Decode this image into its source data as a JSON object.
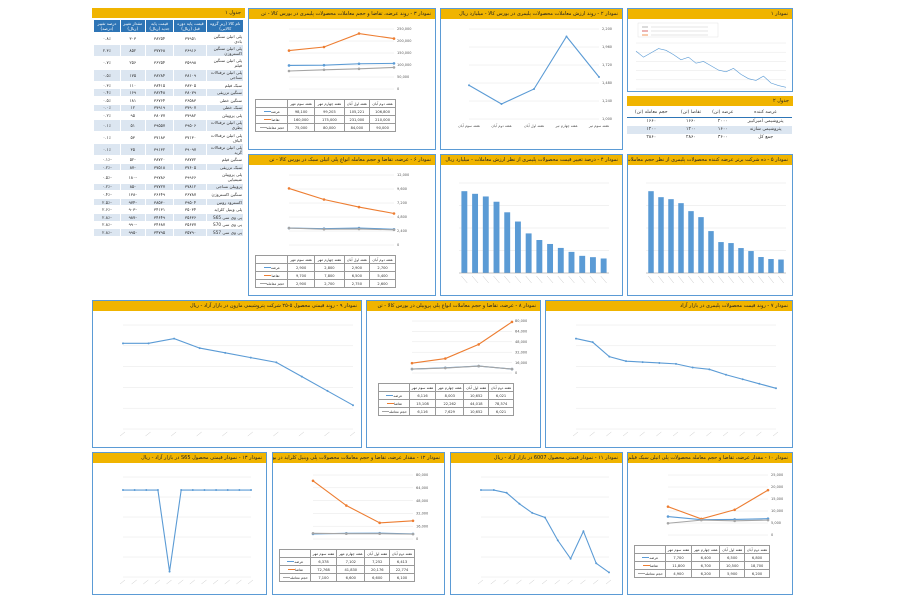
{
  "colors": {
    "blue": "#5b9bd5",
    "orange": "#ed7d31",
    "gray": "#a5a5a5",
    "header": "#f0b400",
    "tableHead": "#2e75b6"
  },
  "table1": {
    "title": "جدول ۱",
    "headers": [
      "نام کالا (زیر گروه کالایی)",
      "قیمت پایه دوره قبل (ریال)",
      "قیمت پایه جدید (ریال)",
      "مقدار تغییر (ریال)",
      "درصد تغییر (درصد)"
    ],
    "rows": [
      [
        "پلی اتیلن سنگین بادی",
        "۳۷۹۵۱",
        "۳۸۲۵۴",
        "۳۰۳",
        "۰.۸٪"
      ],
      [
        "پلی اتیلن سنگین اکستروژن",
        "۳۶۹۱۶",
        "۳۷۷۶۸",
        "۸۵۲",
        "۲.۳٪"
      ],
      [
        "پلی اتیلن سنگین فیلم",
        "۳۵۹۹۸",
        "۳۶۲۵۴",
        "۲۵۶",
        "۰.۷٪"
      ],
      [
        "پلی اتیلن ترفتالات نساجی",
        "۳۸۱۰۹",
        "۳۸۲۸۴",
        "۱۷۵",
        "۰.۵٪"
      ],
      [
        "سبک فیلم",
        "۳۸۳۰۵",
        "۳۸۴۱۵",
        "۱۱۰",
        "۰.۳٪"
      ],
      [
        "سنگین تزریقی",
        "۳۸۰۷۹",
        "۳۸۲۴۸",
        "۱۶۹",
        "۰.۴٪"
      ],
      [
        "سنگین خطی",
        "۳۶۵۸۳",
        "۳۶۷۶۴",
        "۱۸۱",
        "۰.۵٪"
      ],
      [
        "سبک خطی",
        "۳۷۹۰۷",
        "۳۷۹۱۹",
        "۱۲",
        "۰.۰٪"
      ],
      [
        "پلی پروپیلن",
        "۳۷۹۸۲",
        "۳۸۰۷۷",
        "۹۵",
        "۰.۲٪"
      ],
      [
        "پلی اتیلن ترفتالات بطری",
        "۳۹۵۰۶",
        "۳۹۵۵۷",
        "۵۱",
        "۰.۱٪"
      ],
      [
        "پلی اتیلن ترفتالات الیاف",
        "۳۷۱۳۰",
        "۳۷۱۸۳",
        "۵۳",
        "۰.۱٪"
      ],
      [
        "پلی اتیلن ترفتالات گرید",
        "۳۹۰۹۷",
        "۳۹۱۳۲",
        "۳۵",
        "۰.۱٪"
      ],
      [
        "سنگین فیلم",
        "۳۸۷۷۲",
        "۳۸۷۲۰",
        "-۵۲",
        "-۰.۱٪"
      ],
      [
        "سبک تزریقی",
        "۳۷۶۰۵",
        "۳۷۵۱۸",
        "-۸۷",
        "-۰.۲٪"
      ],
      [
        "پلی پروپیلن شیمیایی",
        "۳۹۹۶۶",
        "۳۹۷۸۶",
        "-۱۸۰",
        "-۰.۵٪"
      ],
      [
        "پروپیلن نساجی",
        "۳۷۸۱۲",
        "۳۷۷۲۷",
        "-۸۵",
        "-۰.۲٪"
      ],
      [
        "سنگین اکستروژن",
        "۳۶۷۸۷",
        "۳۶۶۴۹",
        "-۱۳۸",
        "-۰.۴٪"
      ],
      [
        "اکسترود روتین",
        "۳۹۵۰۴",
        "۳۸۵۳۰",
        "-۹۷۴",
        "-۲.۵٪"
      ],
      [
        "پلی وینیل کلراید",
        "۳۵۰۳۴",
        "۳۴۱۳۱",
        "-۹۰۳",
        "-۲.۶٪"
      ],
      [
        "پی وی سی S65",
        "۳۵۶۳۶",
        "۳۴۶۴۹",
        "-۹۸۷",
        "-۲.۸٪"
      ],
      [
        "پی وی سی S70",
        "۳۵۶۷۷",
        "۳۴۶۸۷",
        "-۹۹۰",
        "-۲.۸٪"
      ],
      [
        "پی وی سی S57",
        "۳۵۷۹۰",
        "۳۴۷۹۵",
        "-۹۹۵",
        "-۲.۸٪"
      ]
    ]
  },
  "table2": {
    "title": "جدول ۲",
    "headers": [
      "عرضه کننده",
      "عرضه (تن)",
      "تقاضا (تن)",
      "حجم معامله (تن)"
    ],
    "rows": [
      [
        "پتروشیمی امیرکبیر",
        "۲۰۰۰",
        "۱۶۶۰",
        "۱۶۶۰"
      ],
      [
        "پتروشیمی شازند",
        "۱۶۰۰",
        "۱۲۰۰",
        "۱۲۰۰"
      ],
      [
        "جمع کل",
        "۳۶۰۰",
        "۲۸۶۰",
        "۲۸۶۰"
      ]
    ]
  },
  "chart_data": [
    {
      "id": "c1",
      "type": "line",
      "title": "نمودار ۱",
      "series": [
        {
          "name": "شاخص",
          "values": [
            62,
            55,
            60,
            65,
            63,
            58,
            52,
            55,
            48,
            50,
            45,
            40,
            38,
            42,
            35,
            30,
            28,
            33,
            25,
            22,
            20
          ]
        }
      ]
    },
    {
      "id": "c2",
      "type": "line",
      "title": "نمودار ۲ - روند ارزش معاملات محصولات پلیمری در بورس کالا - میلیارد ریال",
      "categories": [
        "هفته سوم تیر",
        "هفته چهارم تیر",
        "هفته اول آبان",
        "هفته دوم آبان",
        "هفته سوم آبان"
      ],
      "series": [
        {
          "name": "ارزش",
          "values": [
            1560,
            2100,
            1400,
            1200,
            1450
          ]
        }
      ],
      "ylim": [
        1000,
        2200
      ]
    },
    {
      "id": "c3",
      "type": "line",
      "title": "نمودار ۳ - روند عرضه، تقاضا و حجم معاملات محصولات پلیمری در بورس کالا - تن",
      "categories": [
        "هفته دوم آبان",
        "هفته اول آبان",
        "هفته چهارم مهر",
        "هفته سوم مهر"
      ],
      "series": [
        {
          "name": "عرضه",
          "values": [
            106800,
            105221,
            99203,
            98100
          ]
        },
        {
          "name": "تقاضا",
          "values": [
            210000,
            231000,
            175000,
            160000
          ]
        },
        {
          "name": "حجم معامله",
          "values": [
            90000,
            84000,
            80000,
            75000
          ]
        }
      ],
      "ylim": [
        0,
        250000
      ]
    },
    {
      "id": "c4",
      "type": "bar",
      "title": "نمودار ۴ - درصد تغییر قیمت محصولات پلیمری از نظر ارزش معاملات - میلیارد ریال",
      "values": [
        310,
        300,
        290,
        270,
        230,
        195,
        150,
        125,
        110,
        95,
        80,
        65,
        60,
        55
      ]
    },
    {
      "id": "c5",
      "type": "bar",
      "title": "نمودار ۵ - ده شرکت برتر عرضه کننده محصولات پلیمری از نظر حجم معاملات - تن",
      "values": [
        820,
        760,
        740,
        700,
        620,
        560,
        420,
        310,
        300,
        250,
        220,
        160,
        140,
        135
      ]
    },
    {
      "id": "c6",
      "type": "line",
      "title": "نمودار ۶ - عرضه، تقاضا و حجم معامله انواع پلی اتیلن سبک در بورس کالا - تن",
      "categories": [
        "هفته دوم آبان",
        "هفته اول آبان",
        "هفته چهارم مهر",
        "هفته سوم مهر"
      ],
      "series": [
        {
          "name": "عرضه",
          "values": [
            2700,
            2900,
            2800,
            2900
          ]
        },
        {
          "name": "تقاضا",
          "values": [
            5400,
            6500,
            7800,
            9700
          ]
        },
        {
          "name": "حجم معامله",
          "values": [
            2600,
            2750,
            2700,
            2900
          ]
        }
      ],
      "ylim": [
        0,
        12000
      ]
    },
    {
      "id": "c7",
      "type": "line",
      "title": "نمودار ۷ - روند قیمت محصولات پلیمری در بازار آزاد",
      "series": [
        {
          "name": "قیمت",
          "values": [
            100,
            96,
            80,
            75,
            74,
            73,
            72,
            68,
            66,
            60,
            55,
            50,
            45
          ]
        }
      ]
    },
    {
      "id": "c8",
      "type": "line",
      "title": "نمودار ۸ - عرضه، تقاضا و حجم معاملات انواع پلی پروپیلن در بورس کالا - تن",
      "categories": [
        "هفته دوم آبان",
        "هفته اول آبان",
        "هفته چهارم مهر",
        "هفته سوم مهر"
      ],
      "series": [
        {
          "name": "عرضه",
          "values": [
            6021,
            10652,
            8003,
            6116
          ]
        },
        {
          "name": "تقاضا",
          "values": [
            78574,
            44018,
            22262,
            15108
          ]
        },
        {
          "name": "حجم معامله",
          "values": [
            6021,
            10652,
            7629,
            6116
          ]
        }
      ],
      "ylim": [
        0,
        80000
      ]
    },
    {
      "id": "c9",
      "type": "line",
      "title": "نمودار ۹ - روند قیمتی محصول ۵-۲۵ شرکت پتروشیمی مارون در بازار آزاد - ریال",
      "series": [
        {
          "name": "قیمت",
          "values": [
            90,
            90,
            95,
            85,
            80,
            75,
            70,
            55,
            40,
            25
          ]
        }
      ]
    },
    {
      "id": "c10",
      "type": "line",
      "title": "نمودار ۱۰ - مقدار عرضه، تقاضا و حجم معامله محصولات پلی اتیلن سبک فیلم در بورس کالا - تن",
      "categories": [
        "هفته دوم آبان",
        "هفته اول آبان",
        "هفته چهارم مهر",
        "هفته سوم مهر"
      ],
      "series": [
        {
          "name": "عرضه",
          "values": [
            6800,
            6500,
            6400,
            7700
          ]
        },
        {
          "name": "تقاضا",
          "values": [
            18700,
            10500,
            6700,
            11800
          ]
        },
        {
          "name": "حجم معامله",
          "values": [
            6200,
            5900,
            6200,
            4900
          ]
        }
      ],
      "ylim": [
        0,
        25000
      ]
    },
    {
      "id": "c11",
      "type": "line",
      "title": "نمودار ۱۱ - نمودار قیمتی محصول 6007 در بازار آزاد - ریال",
      "series": [
        {
          "name": "قیمت",
          "values": [
            95,
            95,
            92,
            80,
            70,
            65,
            40,
            20,
            50,
            15,
            5
          ]
        }
      ]
    },
    {
      "id": "c12",
      "type": "line",
      "title": "نمودار ۱۲ - مقدار عرضه، تقاضا و حجم معاملات محصولات پلی وینیل کلراید در بورس کالا - تن",
      "categories": [
        "هفته دوم آبان",
        "هفته اول آبان",
        "هفته چهارم مهر",
        "هفته سوم مهر"
      ],
      "series": [
        {
          "name": "عرضه",
          "values": [
            6413,
            7252,
            7102,
            6378
          ]
        },
        {
          "name": "تقاضا",
          "values": [
            22774,
            20176,
            41830,
            72768
          ]
        },
        {
          "name": "حجم معامله",
          "values": [
            6100,
            6600,
            6600,
            7100
          ]
        }
      ],
      "ylim": [
        0,
        80000
      ]
    },
    {
      "id": "c13",
      "type": "line",
      "title": "نمودار ۱۳ - نمودار قیمتی محصول S65 در بازار آزاد - ریال",
      "series": [
        {
          "name": "قیمت",
          "values": [
            80,
            80,
            80,
            80,
            5,
            80,
            80,
            80,
            80,
            80,
            80,
            80
          ]
        }
      ]
    }
  ],
  "dataTables": {
    "c3": {
      "headers": [
        "هفته دوم آبان",
        "هفته اول آبان",
        "هفته چهارم مهر",
        "هفته سوم مهر"
      ],
      "labels": [
        "عرضه",
        "تقاضا",
        "حجم معامله"
      ],
      "rows": [
        [
          "106,800",
          "105,221",
          "99,203",
          "98,100"
        ],
        [
          "210,000",
          "231,000",
          "175,000",
          "160,000"
        ],
        [
          "90,000",
          "84,000",
          "80,000",
          "75,000"
        ]
      ]
    },
    "c6": {
      "headers": [
        "هفته دوم آبان",
        "هفته اول آبان",
        "هفته چهارم مهر",
        "هفته سوم مهر"
      ],
      "labels": [
        "عرضه",
        "تقاضا",
        "حجم معامله"
      ],
      "rows": [
        [
          "2,700",
          "2,900",
          "2,800",
          "2,900"
        ],
        [
          "5,400",
          "6,500",
          "7,800",
          "9,700"
        ],
        [
          "2,600",
          "2,750",
          "2,700",
          "2,900"
        ]
      ]
    },
    "c8": {
      "headers": [
        "هفته دوم آبان",
        "هفته اول آبان",
        "هفته چهارم مهر",
        "هفته سوم مهر"
      ],
      "labels": [
        "عرضه",
        "تقاضا",
        "حجم معامله"
      ],
      "rows": [
        [
          "6,021",
          "10,652",
          "8,003",
          "6,116"
        ],
        [
          "78,574",
          "44,018",
          "22,262",
          "15,108"
        ],
        [
          "6,021",
          "10,652",
          "7,629",
          "6,116"
        ]
      ]
    },
    "c10": {
      "headers": [
        "هفته دوم آبان",
        "هفته اول آبان",
        "هفته چهارم مهر",
        "هفته سوم مهر"
      ],
      "labels": [
        "عرضه",
        "تقاضا",
        "حجم معامله"
      ],
      "rows": [
        [
          "6,800",
          "6,500",
          "6,400",
          "7,700"
        ],
        [
          "18,700",
          "10,500",
          "6,700",
          "11,800"
        ],
        [
          "6,200",
          "5,900",
          "6,200",
          "4,900"
        ]
      ]
    },
    "c12": {
      "headers": [
        "هفته دوم آبان",
        "هفته اول آبان",
        "هفته چهارم مهر",
        "هفته سوم مهر"
      ],
      "labels": [
        "عرضه",
        "تقاضا",
        "حجم معامله"
      ],
      "rows": [
        [
          "6,413",
          "7,252",
          "7,102",
          "6,378"
        ],
        [
          "22,774",
          "20,176",
          "41,830",
          "72,768"
        ],
        [
          "6,100",
          "6,600",
          "6,600",
          "7,100"
        ]
      ]
    }
  }
}
